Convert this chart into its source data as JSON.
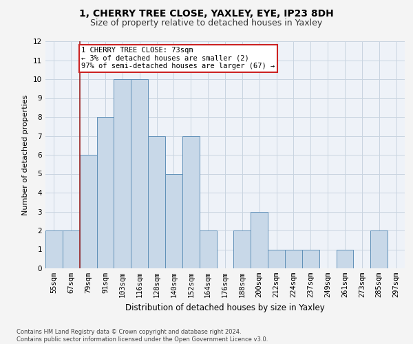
{
  "title1": "1, CHERRY TREE CLOSE, YAXLEY, EYE, IP23 8DH",
  "title2": "Size of property relative to detached houses in Yaxley",
  "xlabel": "Distribution of detached houses by size in Yaxley",
  "ylabel": "Number of detached properties",
  "categories": [
    "55sqm",
    "67sqm",
    "79sqm",
    "91sqm",
    "103sqm",
    "116sqm",
    "128sqm",
    "140sqm",
    "152sqm",
    "164sqm",
    "176sqm",
    "188sqm",
    "200sqm",
    "212sqm",
    "224sqm",
    "237sqm",
    "249sqm",
    "261sqm",
    "273sqm",
    "285sqm",
    "297sqm"
  ],
  "values": [
    2,
    2,
    6,
    8,
    10,
    10,
    7,
    5,
    7,
    2,
    0,
    2,
    3,
    1,
    1,
    1,
    0,
    1,
    0,
    2,
    0
  ],
  "bar_color": "#c8d8e8",
  "bar_edge_color": "#6090b8",
  "vline_x": 1.5,
  "annotation_text": "1 CHERRY TREE CLOSE: 73sqm\n← 3% of detached houses are smaller (2)\n97% of semi-detached houses are larger (67) →",
  "annotation_box_color": "#ffffff",
  "annotation_box_edge": "#cc2222",
  "ylim": [
    0,
    12
  ],
  "yticks": [
    0,
    1,
    2,
    3,
    4,
    5,
    6,
    7,
    8,
    9,
    10,
    11,
    12
  ],
  "grid_color": "#c8d4e0",
  "background_color": "#eef2f8",
  "footer": "Contains HM Land Registry data © Crown copyright and database right 2024.\nContains public sector information licensed under the Open Government Licence v3.0.",
  "vline_color": "#992222",
  "title1_fontsize": 10,
  "title2_fontsize": 9,
  "xlabel_fontsize": 8.5,
  "ylabel_fontsize": 8,
  "tick_fontsize": 7.5,
  "annotation_fontsize": 7.5,
  "footer_fontsize": 6
}
